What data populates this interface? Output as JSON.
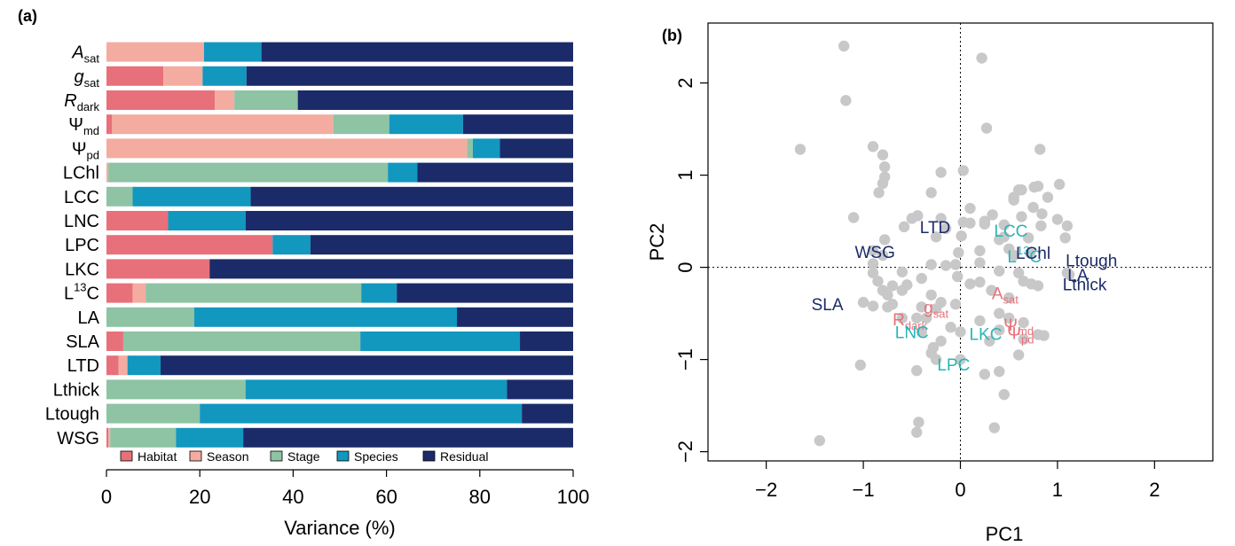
{
  "panel_a": {
    "label": "(a)",
    "xlabel": "Variance (%)",
    "colors": {
      "Habitat": "#e8707a",
      "Season": "#f4aca0",
      "Stage": "#8ec3a3",
      "Species": "#1297bf",
      "Residual": "#1b2b69"
    }
  },
  "panel_b": {
    "label": "(b)",
    "xlabel": "PC1",
    "ylabel": "PC2",
    "point_color": "#c8c8c8",
    "label_colors": {
      "red": "#e8707a",
      "teal": "#2ab5b5",
      "navy": "#1b2b69"
    }
  },
  "chart_data": [
    {
      "type": "bar",
      "orientation": "horizontal",
      "stacked": true,
      "xlabel": "Variance (%)",
      "xlim": [
        0,
        100
      ],
      "xticks": [
        0,
        20,
        40,
        60,
        80,
        100
      ],
      "legend_position": "bottom",
      "categories": [
        {
          "base": "A",
          "sub": "sat",
          "italic": true
        },
        {
          "base": "g",
          "sub": "sat",
          "italic": true
        },
        {
          "base": "R",
          "sub": "dark",
          "italic": true
        },
        {
          "base": "Ψ",
          "sub": "md",
          "italic": false
        },
        {
          "base": "Ψ",
          "sub": "pd",
          "italic": false
        },
        {
          "base": "LChl"
        },
        {
          "base": "LCC"
        },
        {
          "base": "LNC"
        },
        {
          "base": "LPC"
        },
        {
          "base": "LKC"
        },
        {
          "base": "L",
          "sup": "13",
          "tail": "C"
        },
        {
          "base": "LA"
        },
        {
          "base": "SLA"
        },
        {
          "base": "LTD"
        },
        {
          "base": "Lthick"
        },
        {
          "base": "Ltough"
        },
        {
          "base": "WSG"
        }
      ],
      "series": [
        {
          "name": "Habitat",
          "values": [
            0,
            12.2,
            23.2,
            1.2,
            0,
            0,
            0,
            13.2,
            35.6,
            22.1,
            5.6,
            0,
            3.6,
            2.6,
            0,
            0,
            0.4
          ]
        },
        {
          "name": "Season",
          "values": [
            20.9,
            8.4,
            4.2,
            47.4,
            77.3,
            0.4,
            0,
            0,
            0,
            0,
            2.8,
            0,
            0,
            1.9,
            0,
            0,
            0.4
          ]
        },
        {
          "name": "Stage",
          "values": [
            0,
            0,
            13.6,
            12.0,
            1.2,
            59.9,
            5.6,
            0,
            0,
            0,
            46.2,
            18.8,
            50.8,
            0,
            29.8,
            20.0,
            14.1
          ]
        },
        {
          "name": "Species",
          "values": [
            12.3,
            9.4,
            0,
            15.8,
            5.8,
            6.3,
            25.3,
            16.6,
            8.1,
            0,
            7.6,
            56.3,
            34.2,
            7.1,
            56.0,
            69.0,
            14.4
          ]
        },
        {
          "name": "Residual",
          "values": [
            66.8,
            70.0,
            59.0,
            23.6,
            15.7,
            33.4,
            69.1,
            70.2,
            56.3,
            77.9,
            37.8,
            24.9,
            11.4,
            88.4,
            14.2,
            11.0,
            70.7
          ]
        }
      ]
    },
    {
      "type": "scatter",
      "xlabel": "PC1",
      "ylabel": "PC2",
      "xlim": [
        -2.6,
        2.6
      ],
      "ylim": [
        -2.1,
        2.65
      ],
      "xticks": [
        -2,
        -1,
        0,
        1,
        2
      ],
      "yticks": [
        -2,
        -1,
        0,
        1,
        2
      ],
      "reference_lines": {
        "x": 0,
        "y": 0,
        "style": "dotted"
      },
      "points": [
        [
          -1.2,
          2.4
        ],
        [
          0.22,
          2.27
        ],
        [
          -1.18,
          1.81
        ],
        [
          0.27,
          1.51
        ],
        [
          -1.65,
          1.28
        ],
        [
          -0.9,
          1.31
        ],
        [
          -0.8,
          1.22
        ],
        [
          0.82,
          1.28
        ],
        [
          -0.78,
          1.09
        ],
        [
          -0.78,
          0.98
        ],
        [
          -0.2,
          1.03
        ],
        [
          0.03,
          1.05
        ],
        [
          -0.8,
          0.91
        ],
        [
          -0.84,
          0.81
        ],
        [
          -0.3,
          0.81
        ],
        [
          0.6,
          0.84
        ],
        [
          0.63,
          0.84
        ],
        [
          0.76,
          0.87
        ],
        [
          0.8,
          0.88
        ],
        [
          1.02,
          0.9
        ],
        [
          0.1,
          0.64
        ],
        [
          0.55,
          0.73
        ],
        [
          0.55,
          0.76
        ],
        [
          0.9,
          0.76
        ],
        [
          0.75,
          0.65
        ],
        [
          0.84,
          0.58
        ],
        [
          0.63,
          0.55
        ],
        [
          1.0,
          0.52
        ],
        [
          1.1,
          0.45
        ],
        [
          0.83,
          0.45
        ],
        [
          -1.1,
          0.54
        ],
        [
          -0.44,
          0.56
        ],
        [
          -0.2,
          0.53
        ],
        [
          -0.5,
          0.53
        ],
        [
          0.03,
          0.49
        ],
        [
          0.1,
          0.48
        ],
        [
          -0.58,
          0.44
        ],
        [
          -0.15,
          0.42
        ],
        [
          0.25,
          0.47
        ],
        [
          0.25,
          0.5
        ],
        [
          0.33,
          0.57
        ],
        [
          0.45,
          0.46
        ],
        [
          -0.78,
          0.3
        ],
        [
          -0.9,
          0.18
        ],
        [
          -0.8,
          0.13
        ],
        [
          -0.25,
          0.33
        ],
        [
          0.01,
          0.34
        ],
        [
          0.45,
          0.33
        ],
        [
          0.4,
          0.3
        ],
        [
          0.7,
          0.32
        ],
        [
          1.08,
          0.32
        ],
        [
          -0.02,
          0.16
        ],
        [
          0.2,
          0.18
        ],
        [
          0.5,
          0.2
        ],
        [
          0.55,
          0.13
        ],
        [
          0.72,
          0.15
        ],
        [
          -0.9,
          0.04
        ],
        [
          -0.9,
          -0.06
        ],
        [
          -0.6,
          -0.05
        ],
        [
          -0.3,
          0.03
        ],
        [
          -0.15,
          0.02
        ],
        [
          -0.05,
          0.03
        ],
        [
          0.2,
          0.05
        ],
        [
          0.4,
          -0.04
        ],
        [
          0.6,
          -0.06
        ],
        [
          1.1,
          -0.06
        ],
        [
          1.12,
          -0.08
        ],
        [
          -0.85,
          -0.15
        ],
        [
          -0.7,
          -0.2
        ],
        [
          -0.55,
          -0.19
        ],
        [
          -0.4,
          -0.12
        ],
        [
          -0.03,
          -0.1
        ],
        [
          0.1,
          -0.18
        ],
        [
          0.2,
          -0.16
        ],
        [
          0.65,
          -0.15
        ],
        [
          0.73,
          -0.18
        ],
        [
          0.8,
          -0.2
        ],
        [
          -0.8,
          -0.25
        ],
        [
          -0.75,
          -0.3
        ],
        [
          -0.6,
          -0.25
        ],
        [
          -0.3,
          -0.3
        ],
        [
          -0.2,
          -0.38
        ],
        [
          0.32,
          -0.25
        ],
        [
          0.5,
          -0.33
        ],
        [
          -1.0,
          -0.38
        ],
        [
          -0.9,
          -0.42
        ],
        [
          -0.75,
          -0.43
        ],
        [
          -0.7,
          -0.4
        ],
        [
          -0.4,
          -0.43
        ],
        [
          -0.25,
          -0.45
        ],
        [
          -0.05,
          -0.4
        ],
        [
          0.4,
          -0.5
        ],
        [
          -0.6,
          -0.55
        ],
        [
          -0.45,
          -0.55
        ],
        [
          -0.35,
          -0.55
        ],
        [
          0.2,
          -0.58
        ],
        [
          0.5,
          -0.55
        ],
        [
          0.65,
          -0.6
        ],
        [
          -0.4,
          -0.7
        ],
        [
          -0.1,
          -0.65
        ],
        [
          0.0,
          -0.7
        ],
        [
          0.4,
          -0.68
        ],
        [
          0.8,
          -0.73
        ],
        [
          0.86,
          -0.74
        ],
        [
          0.65,
          -0.78
        ],
        [
          -0.2,
          -0.8
        ],
        [
          0.3,
          -0.8
        ],
        [
          0.6,
          -0.95
        ],
        [
          -1.03,
          -1.06
        ],
        [
          -0.28,
          -0.87
        ],
        [
          -0.3,
          -0.93
        ],
        [
          -0.25,
          -1.0
        ],
        [
          0.0,
          -1.0
        ],
        [
          -0.45,
          -1.12
        ],
        [
          0.25,
          -1.16
        ],
        [
          0.4,
          -1.13
        ],
        [
          0.45,
          -1.38
        ],
        [
          -0.43,
          -1.68
        ],
        [
          -0.45,
          -1.79
        ],
        [
          0.35,
          -1.74
        ],
        [
          -1.45,
          -1.88
        ]
      ],
      "labels": [
        {
          "text": "LTD",
          "x": -0.26,
          "y": 0.44,
          "color": "navy"
        },
        {
          "text": "WSG",
          "x": -0.88,
          "y": 0.17,
          "color": "navy"
        },
        {
          "text": "SLA",
          "x": -1.37,
          "y": -0.4,
          "color": "navy"
        },
        {
          "text": "LCC",
          "x": 0.52,
          "y": 0.4,
          "color": "teal"
        },
        {
          "text": "L",
          "sup": "13",
          "tail": "C",
          "x": 0.66,
          "y": 0.12,
          "color": "teal"
        },
        {
          "text": "LChl",
          "x": 0.75,
          "y": 0.16,
          "color": "navy"
        },
        {
          "text": "Ltough",
          "x": 1.35,
          "y": 0.08,
          "color": "navy"
        },
        {
          "text": "LA",
          "x": 1.21,
          "y": -0.08,
          "color": "navy"
        },
        {
          "text": "Lthick",
          "x": 1.28,
          "y": -0.18,
          "color": "navy"
        },
        {
          "text": "A",
          "sub": "sat",
          "x": 0.46,
          "y": -0.28,
          "color": "red"
        },
        {
          "text": "g",
          "sub": "sat",
          "x": -0.25,
          "y": -0.43,
          "color": "red"
        },
        {
          "text": "R",
          "sub": "dark",
          "x": -0.52,
          "y": -0.56,
          "color": "red"
        },
        {
          "text": "Ψ",
          "sub": "md",
          "x": 0.6,
          "y": -0.62,
          "color": "red"
        },
        {
          "text": "Ψ",
          "sub": "pd",
          "x": 0.62,
          "y": -0.71,
          "color": "red"
        },
        {
          "text": "LNC",
          "x": -0.5,
          "y": -0.7,
          "color": "teal"
        },
        {
          "text": "LKC",
          "x": 0.26,
          "y": -0.72,
          "color": "teal"
        },
        {
          "text": "LPC",
          "x": -0.07,
          "y": -1.05,
          "color": "teal"
        }
      ]
    }
  ]
}
